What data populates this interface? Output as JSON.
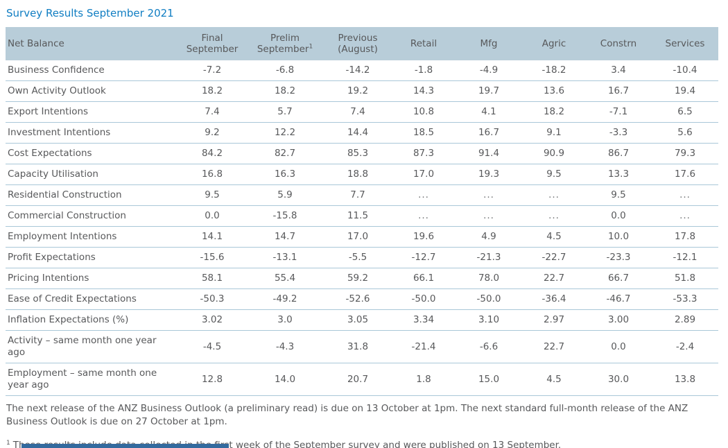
{
  "title": "Survey Results September 2021",
  "colors": {
    "title_blue": "#0f7dc2",
    "header_bg": "#b8cdd9",
    "text": "#57585a",
    "row_line": "#a9c7d8",
    "bar_blue": "#336a9e"
  },
  "table": {
    "header": {
      "label_column": "Net Balance",
      "columns": [
        {
          "id": "final-september",
          "line1": "Final",
          "line2": "September"
        },
        {
          "id": "prelim-september",
          "line1": "Prelim",
          "line2": "September",
          "sup": "1"
        },
        {
          "id": "previous-august",
          "line1": "Previous",
          "line2": "(August)"
        },
        {
          "id": "retail",
          "line1": "Retail"
        },
        {
          "id": "mfg",
          "line1": "Mfg"
        },
        {
          "id": "agric",
          "line1": "Agric"
        },
        {
          "id": "constrn",
          "line1": "Constrn"
        },
        {
          "id": "services",
          "line1": "Services"
        }
      ]
    },
    "rows": [
      {
        "label": "Business Confidence",
        "values": [
          "-7.2",
          "-6.8",
          "-14.2",
          "-1.8",
          "-4.9",
          "-18.2",
          "3.4",
          "-10.4"
        ]
      },
      {
        "label": "Own Activity Outlook",
        "values": [
          "18.2",
          "18.2",
          "19.2",
          "14.3",
          "19.7",
          "13.6",
          "16.7",
          "19.4"
        ]
      },
      {
        "label": "Export Intentions",
        "values": [
          "7.4",
          "5.7",
          "7.4",
          "10.8",
          "4.1",
          "18.2",
          "-7.1",
          "6.5"
        ]
      },
      {
        "label": "Investment Intentions",
        "values": [
          "9.2",
          "12.2",
          "14.4",
          "18.5",
          "16.7",
          "9.1",
          "-3.3",
          "5.6"
        ]
      },
      {
        "label": "Cost Expectations",
        "values": [
          "84.2",
          "82.7",
          "85.3",
          "87.3",
          "91.4",
          "90.9",
          "86.7",
          "79.3"
        ]
      },
      {
        "label": "Capacity Utilisation",
        "values": [
          "16.8",
          "16.3",
          "18.8",
          "17.0",
          "19.3",
          "9.5",
          "13.3",
          "17.6"
        ]
      },
      {
        "label": "Residential Construction",
        "values": [
          "9.5",
          "5.9",
          "7.7",
          "...",
          "...",
          "...",
          "9.5",
          "..."
        ]
      },
      {
        "label": "Commercial Construction",
        "values": [
          "0.0",
          "-15.8",
          "11.5",
          "...",
          "...",
          "...",
          "0.0",
          "..."
        ]
      },
      {
        "label": "Employment Intentions",
        "values": [
          "14.1",
          "14.7",
          "17.0",
          "19.6",
          "4.9",
          "4.5",
          "10.0",
          "17.8"
        ]
      },
      {
        "label": "Profit Expectations",
        "values": [
          "-15.6",
          "-13.1",
          "-5.5",
          "-12.7",
          "-21.3",
          "-22.7",
          "-23.3",
          "-12.1"
        ]
      },
      {
        "label": "Pricing Intentions",
        "values": [
          "58.1",
          "55.4",
          "59.2",
          "66.1",
          "78.0",
          "22.7",
          "66.7",
          "51.8"
        ]
      },
      {
        "label": "Ease of Credit Expectations",
        "values": [
          "-50.3",
          "-49.2",
          "-52.6",
          "-50.0",
          "-50.0",
          "-36.4",
          "-46.7",
          "-53.3"
        ]
      },
      {
        "label": "Inflation Expectations (%)",
        "values": [
          "3.02",
          "3.0",
          "3.05",
          "3.34",
          "3.10",
          "2.97",
          "3.00",
          "2.89"
        ]
      },
      {
        "label": "Activity – same month one year ago",
        "values": [
          "-4.5",
          "-4.3",
          "31.8",
          "-21.4",
          "-6.6",
          "22.7",
          "0.0",
          "-2.4"
        ]
      },
      {
        "label": "Employment – same month one year ago",
        "values": [
          "12.8",
          "14.0",
          "20.7",
          "1.8",
          "15.0",
          "4.5",
          "30.0",
          "13.8"
        ]
      }
    ]
  },
  "footer": {
    "release_note": "The next release of the ANZ Business Outlook (a preliminary read) is due on 13 October at 1pm. The next standard full-month release of the ANZ Business Outlook is due on 27 October at 1pm.",
    "footnote_marker": "1",
    "footnote_text": "These results include data collected in the first week of the September survey and were published on 13 September."
  }
}
